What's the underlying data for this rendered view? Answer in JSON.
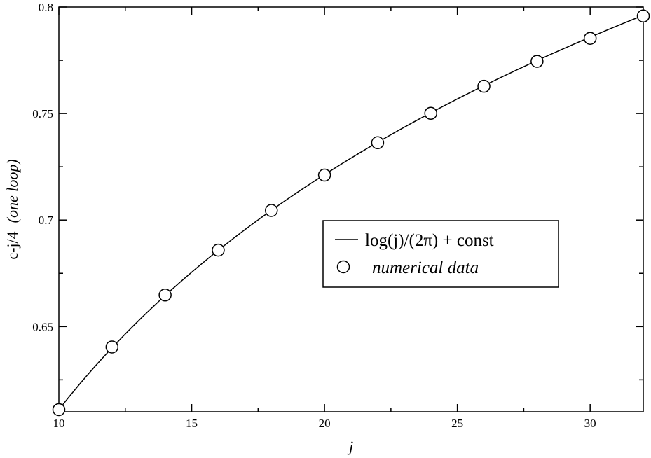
{
  "chart_data": {
    "type": "scatter",
    "xlabel": "j",
    "ylabel_main": "c-j/4",
    "ylabel_italic": "(one loop)",
    "xlim": [
      10,
      32
    ],
    "ylim": [
      0.61,
      0.8
    ],
    "x_ticks": [
      10,
      15,
      20,
      25,
      30
    ],
    "x_tick_labels": [
      "10",
      "15",
      "20",
      "25",
      "30"
    ],
    "y_ticks": [
      0.65,
      0.7,
      0.75,
      0.8
    ],
    "y_tick_labels": [
      "0.65",
      "0.7",
      "0.75",
      "0.8"
    ],
    "legend_position": "center-right",
    "series": [
      {
        "name": "log(j)/(2π) + const",
        "kind": "line",
        "function": "log(j)/(2*pi) + 0.6111",
        "x_range": [
          10,
          32
        ]
      },
      {
        "name": "numerical data",
        "kind": "markers",
        "x": [
          10,
          12,
          14,
          16,
          18,
          20,
          22,
          24,
          26,
          28,
          30,
          32
        ],
        "y": [
          0.611,
          0.6404,
          0.6648,
          0.6859,
          0.7045,
          0.7211,
          0.7363,
          0.7501,
          0.7628,
          0.7745,
          0.7853,
          0.7958
        ]
      }
    ]
  }
}
